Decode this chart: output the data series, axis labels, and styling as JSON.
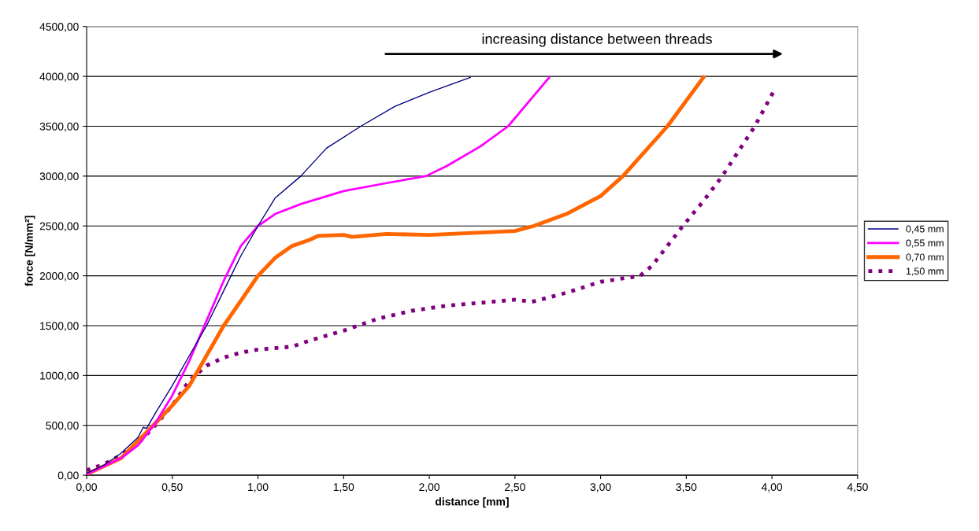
{
  "chart_data": {
    "type": "line",
    "xlabel": "distance [mm]",
    "ylabel": "force [N/mm²]",
    "xlim": [
      0,
      4.5
    ],
    "ylim": [
      0,
      4500
    ],
    "xticks": [
      {
        "value": 0,
        "label": "0,00"
      },
      {
        "value": 0.5,
        "label": "0,50"
      },
      {
        "value": 1,
        "label": "1,00"
      },
      {
        "value": 1.5,
        "label": "1,50"
      },
      {
        "value": 2,
        "label": "2,00"
      },
      {
        "value": 2.5,
        "label": "2,50"
      },
      {
        "value": 3,
        "label": "3,00"
      },
      {
        "value": 3.5,
        "label": "3,50"
      },
      {
        "value": 4,
        "label": "4,00"
      },
      {
        "value": 4.5,
        "label": "4,50"
      }
    ],
    "yticks": [
      {
        "value": 0,
        "label": "0,00"
      },
      {
        "value": 500,
        "label": "500,00"
      },
      {
        "value": 1000,
        "label": "1000,00"
      },
      {
        "value": 1500,
        "label": "1500,00"
      },
      {
        "value": 2000,
        "label": "2000,00"
      },
      {
        "value": 2500,
        "label": "2500,00"
      },
      {
        "value": 3000,
        "label": "3000,00"
      },
      {
        "value": 3500,
        "label": "3500,00"
      },
      {
        "value": 4000,
        "label": "4000,00"
      },
      {
        "value": 4500,
        "label": "4500,00"
      }
    ],
    "grid": "y",
    "legend": "right",
    "marker": "none",
    "annotations": [
      "increasing distance between threads"
    ],
    "series": [
      {
        "name": "0,45 mm",
        "color": "#000080",
        "line_style": "solid",
        "x": [
          0,
          0.1,
          0.2,
          0.3,
          0.33,
          0.35,
          0.4,
          0.5,
          0.6,
          0.7,
          0.8,
          0.9,
          1.0,
          1.1,
          1.25,
          1.4,
          1.6,
          1.8,
          2.0,
          2.24
        ],
        "values": [
          20,
          100,
          220,
          380,
          480,
          470,
          620,
          900,
          1200,
          1500,
          1850,
          2200,
          2500,
          2780,
          3000,
          3280,
          3500,
          3700,
          3840,
          3990
        ]
      },
      {
        "name": "0,55 mm",
        "color": "#ff00ff",
        "line_style": "solid",
        "x": [
          0,
          0.2,
          0.3,
          0.4,
          0.5,
          0.6,
          0.7,
          0.8,
          0.9,
          1.0,
          1.1,
          1.25,
          1.5,
          1.75,
          1.98,
          2.1,
          2.3,
          2.46,
          2.7
        ],
        "values": [
          10,
          170,
          300,
          520,
          800,
          1150,
          1550,
          1950,
          2300,
          2500,
          2620,
          2720,
          2850,
          2930,
          3000,
          3100,
          3300,
          3500,
          3990
        ]
      },
      {
        "name": "0,70 mm",
        "color": "#ff6600",
        "line_style": "solid",
        "x": [
          0,
          0.2,
          0.4,
          0.5,
          0.6,
          0.7,
          0.8,
          0.9,
          1.0,
          1.1,
          1.2,
          1.3,
          1.35,
          1.5,
          1.55,
          1.75,
          2.0,
          2.25,
          2.5,
          2.61,
          2.8,
          3.0,
          3.13,
          3.39,
          3.6
        ],
        "values": [
          10,
          170,
          520,
          700,
          900,
          1200,
          1500,
          1750,
          2000,
          2180,
          2300,
          2360,
          2400,
          2410,
          2390,
          2420,
          2410,
          2430,
          2450,
          2500,
          2620,
          2800,
          3000,
          3500,
          3990
        ]
      },
      {
        "name": "1,50 mm",
        "color": "#800080",
        "line_style": "dotted",
        "x": [
          0,
          0.1,
          0.2,
          0.3,
          0.4,
          0.5,
          0.6,
          0.7,
          0.8,
          0.9,
          1.0,
          1.2,
          1.3,
          1.5,
          1.7,
          1.9,
          2.1,
          2.3,
          2.5,
          2.6,
          2.8,
          3.0,
          3.23,
          3.3,
          3.48,
          3.6,
          3.71,
          3.9,
          4.01
        ],
        "values": [
          50,
          110,
          200,
          320,
          500,
          700,
          950,
          1100,
          1180,
          1230,
          1260,
          1290,
          1350,
          1450,
          1570,
          1650,
          1700,
          1730,
          1760,
          1740,
          1830,
          1940,
          2000,
          2100,
          2500,
          2750,
          3000,
          3500,
          3850
        ]
      }
    ]
  }
}
